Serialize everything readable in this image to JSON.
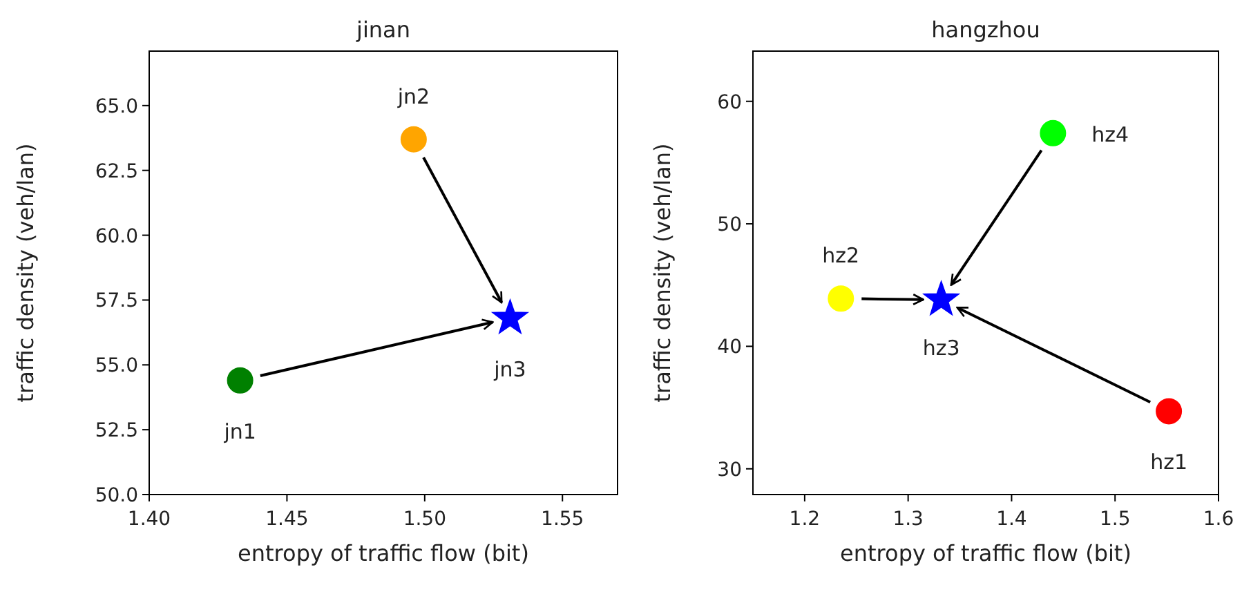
{
  "chart_data": [
    {
      "type": "scatter",
      "title": "jinan",
      "xlabel": "entropy of traffic flow (bit)",
      "ylabel": "traffic density (veh/lan)",
      "xlim": [
        1.4,
        1.57
      ],
      "xticks": [
        {
          "value": 1.4,
          "label": "1.40"
        },
        {
          "value": 1.45,
          "label": "1.45"
        },
        {
          "value": 1.5,
          "label": "1.50"
        },
        {
          "value": 1.55,
          "label": "1.55"
        }
      ],
      "ylim": [
        50,
        67.1
      ],
      "yticks": [
        {
          "value": 50,
          "label": "50.0"
        },
        {
          "value": 52.5,
          "label": "52.5"
        },
        {
          "value": 55,
          "label": "55.0"
        },
        {
          "value": 57.5,
          "label": "57.5"
        },
        {
          "value": 60,
          "label": "60.0"
        },
        {
          "value": 62.5,
          "label": "62.5"
        },
        {
          "value": 65,
          "label": "65.0"
        }
      ],
      "series": [
        {
          "name": "jn1",
          "color": "#008000",
          "marker": "circle",
          "x": [
            1.433
          ],
          "values": [
            54.4
          ]
        },
        {
          "name": "jn2",
          "color": "#ffa500",
          "marker": "circle",
          "x": [
            1.496
          ],
          "values": [
            63.7
          ]
        },
        {
          "name": "jn3",
          "color": "#0000ff",
          "marker": "star",
          "x": [
            1.531
          ],
          "values": [
            56.8
          ]
        }
      ]
    },
    {
      "type": "scatter",
      "title": "hangzhou",
      "xlabel": "entropy of traffic flow (bit)",
      "ylabel": "traffic density (veh/lan)",
      "xlim": [
        1.15,
        1.6
      ],
      "xticks": [
        {
          "value": 1.2,
          "label": "1.2"
        },
        {
          "value": 1.3,
          "label": "1.3"
        },
        {
          "value": 1.4,
          "label": "1.4"
        },
        {
          "value": 1.5,
          "label": "1.5"
        },
        {
          "value": 1.6,
          "label": "1.6"
        }
      ],
      "ylim": [
        27.9,
        64.1
      ],
      "yticks": [
        30,
        40,
        50,
        60
      ],
      "series": [
        {
          "name": "hz1",
          "color": "#ff0000",
          "marker": "circle",
          "x": [
            1.552
          ],
          "values": [
            34.7
          ]
        },
        {
          "name": "hz2",
          "color": "#ffff00",
          "marker": "circle",
          "x": [
            1.235
          ],
          "values": [
            43.9
          ]
        },
        {
          "name": "hz3",
          "color": "#0000ff",
          "marker": "star",
          "x": [
            1.332
          ],
          "values": [
            43.8
          ]
        },
        {
          "name": "hz4",
          "color": "#00ff00",
          "marker": "circle",
          "x": [
            1.44
          ],
          "values": [
            57.4
          ]
        }
      ]
    }
  ]
}
